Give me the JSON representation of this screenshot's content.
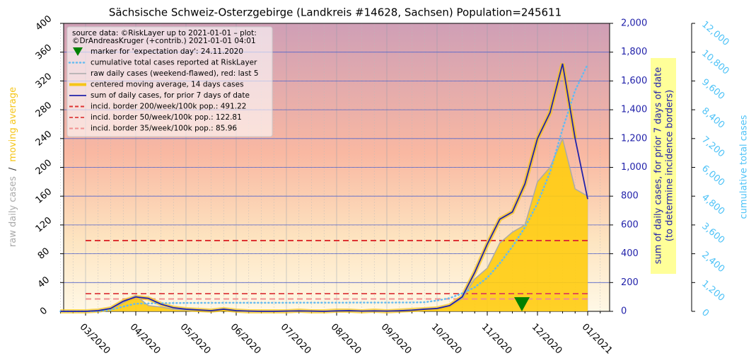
{
  "chart_data": {
    "type": "line",
    "title": "Sächsische Schweiz-Osterzgebirge (Landkreis #14628, Sachsen) Population=245611",
    "categories": [
      null,
      null,
      "03/2020",
      null,
      null,
      null,
      "04/2020",
      null,
      null,
      null,
      "05/2020",
      null,
      null,
      null,
      "06/2020",
      null,
      null,
      null,
      "07/2020",
      null,
      null,
      null,
      "08/2020",
      null,
      null,
      null,
      "09/2020",
      null,
      null,
      null,
      "10/2020",
      null,
      null,
      null,
      "11/2020",
      null,
      null,
      null,
      "12/2020",
      null,
      null,
      null,
      "01/2021",
      null
    ],
    "ylim": [
      0,
      400
    ],
    "yticks": [
      0,
      40,
      80,
      120,
      160,
      200,
      240,
      280,
      320,
      360,
      400
    ],
    "y2lim": [
      0,
      2000
    ],
    "y2ticks": [
      0,
      200,
      400,
      600,
      800,
      {
        "value": 1000,
        "label": "1,000"
      },
      {
        "value": 1200,
        "label": "1,200"
      },
      {
        "value": 1400,
        "label": "1,400"
      },
      {
        "value": 1600,
        "label": "1,600"
      },
      {
        "value": 1800,
        "label": "1,800"
      },
      {
        "value": 2000,
        "label": "2,000"
      }
    ],
    "y3lim": [
      0,
      12000
    ],
    "y3ticks": [
      0,
      {
        "value": 1200,
        "label": "1,200"
      },
      {
        "value": 2400,
        "label": "2,400"
      },
      {
        "value": 3600,
        "label": "3,600"
      },
      {
        "value": 4800,
        "label": "4,800"
      },
      {
        "value": 6000,
        "label": "6,000"
      },
      {
        "value": 7200,
        "label": "7,200"
      },
      {
        "value": 8400,
        "label": "8,400"
      },
      {
        "value": 9600,
        "label": "9,600"
      },
      {
        "value": 10800,
        "label": "10,800"
      },
      {
        "value": 12000,
        "label": "12,000"
      }
    ],
    "ylabel_parts": [
      "raw daily cases",
      "/",
      "moving average"
    ],
    "y2label": [
      "sum of daily cases, for prior 7 days of date",
      "(to determine incidence borders)"
    ],
    "y3label": "cumulative total cases",
    "source_note": [
      "source data: ©RiskLayer up to 2021-01-01 – plot:",
      "©DrAndreasKruger (+contrib.) 2021-01-01 04:01"
    ],
    "marker_label": "marker for 'expectation day': 24.11.2020",
    "series": [
      {
        "name": "cumulative total cases reported at RiskLayer",
        "color": "#66bbf0",
        "axis": "y3",
        "values": [
          0,
          0,
          0,
          10,
          60,
          200,
          320,
          330,
          340,
          345,
          350,
          352,
          354,
          356,
          358,
          358,
          358,
          358,
          359,
          360,
          361,
          361,
          362,
          363,
          364,
          365,
          366,
          367,
          370,
          380,
          450,
          550,
          750,
          1000,
          1400,
          2000,
          2700,
          3500,
          4500,
          5800,
          7600,
          9200,
          10300,
          null
        ]
      },
      {
        "name": "raw daily cases (weekend-flawed), red: last 5",
        "color": "#aaaaaa",
        "values": [
          0,
          0,
          0,
          1,
          4,
          12,
          22,
          8,
          6,
          3,
          2,
          2,
          1,
          3,
          1,
          0,
          0,
          0,
          0,
          1,
          0,
          0,
          1,
          1,
          0,
          1,
          0,
          1,
          2,
          3,
          4,
          8,
          18,
          45,
          60,
          95,
          110,
          120,
          180,
          200,
          240,
          170,
          160,
          null
        ]
      },
      {
        "name": "centered moving average, 14 days cases",
        "color": "#f5c518",
        "values": [
          0,
          0,
          0,
          1,
          4,
          14,
          20,
          18,
          10,
          5,
          3,
          2,
          1,
          3,
          1,
          0,
          0,
          0,
          0,
          1,
          0,
          0,
          1,
          1,
          0,
          1,
          0,
          1,
          2,
          3,
          4,
          8,
          20,
          54,
          93,
          128,
          138,
          177,
          240,
          276,
          344,
          240,
          null,
          null
        ]
      },
      {
        "name": "sum of daily cases, for prior 7 days of date",
        "color": "#2222aa",
        "axis": "y2",
        "values": [
          0,
          0,
          0,
          5,
          20,
          70,
          100,
          90,
          50,
          25,
          15,
          10,
          5,
          15,
          5,
          2,
          0,
          0,
          2,
          3,
          2,
          0,
          3,
          5,
          2,
          3,
          2,
          4,
          8,
          15,
          20,
          40,
          100,
          270,
          467,
          640,
          690,
          885,
          1200,
          1380,
          1720,
          1200,
          780,
          null
        ]
      }
    ],
    "borders": [
      {
        "name": "incid. border 200/week/100k pop.: 491.22",
        "value": 491.22,
        "color": "#dd3333"
      },
      {
        "name": "incid. border 50/week/100k pop.: 122.81",
        "value": 122.81,
        "color": "#e05050"
      },
      {
        "name": "incid. border 35/week/100k pop.: 85.96",
        "value": 85.96,
        "color": "#f09090"
      }
    ]
  }
}
